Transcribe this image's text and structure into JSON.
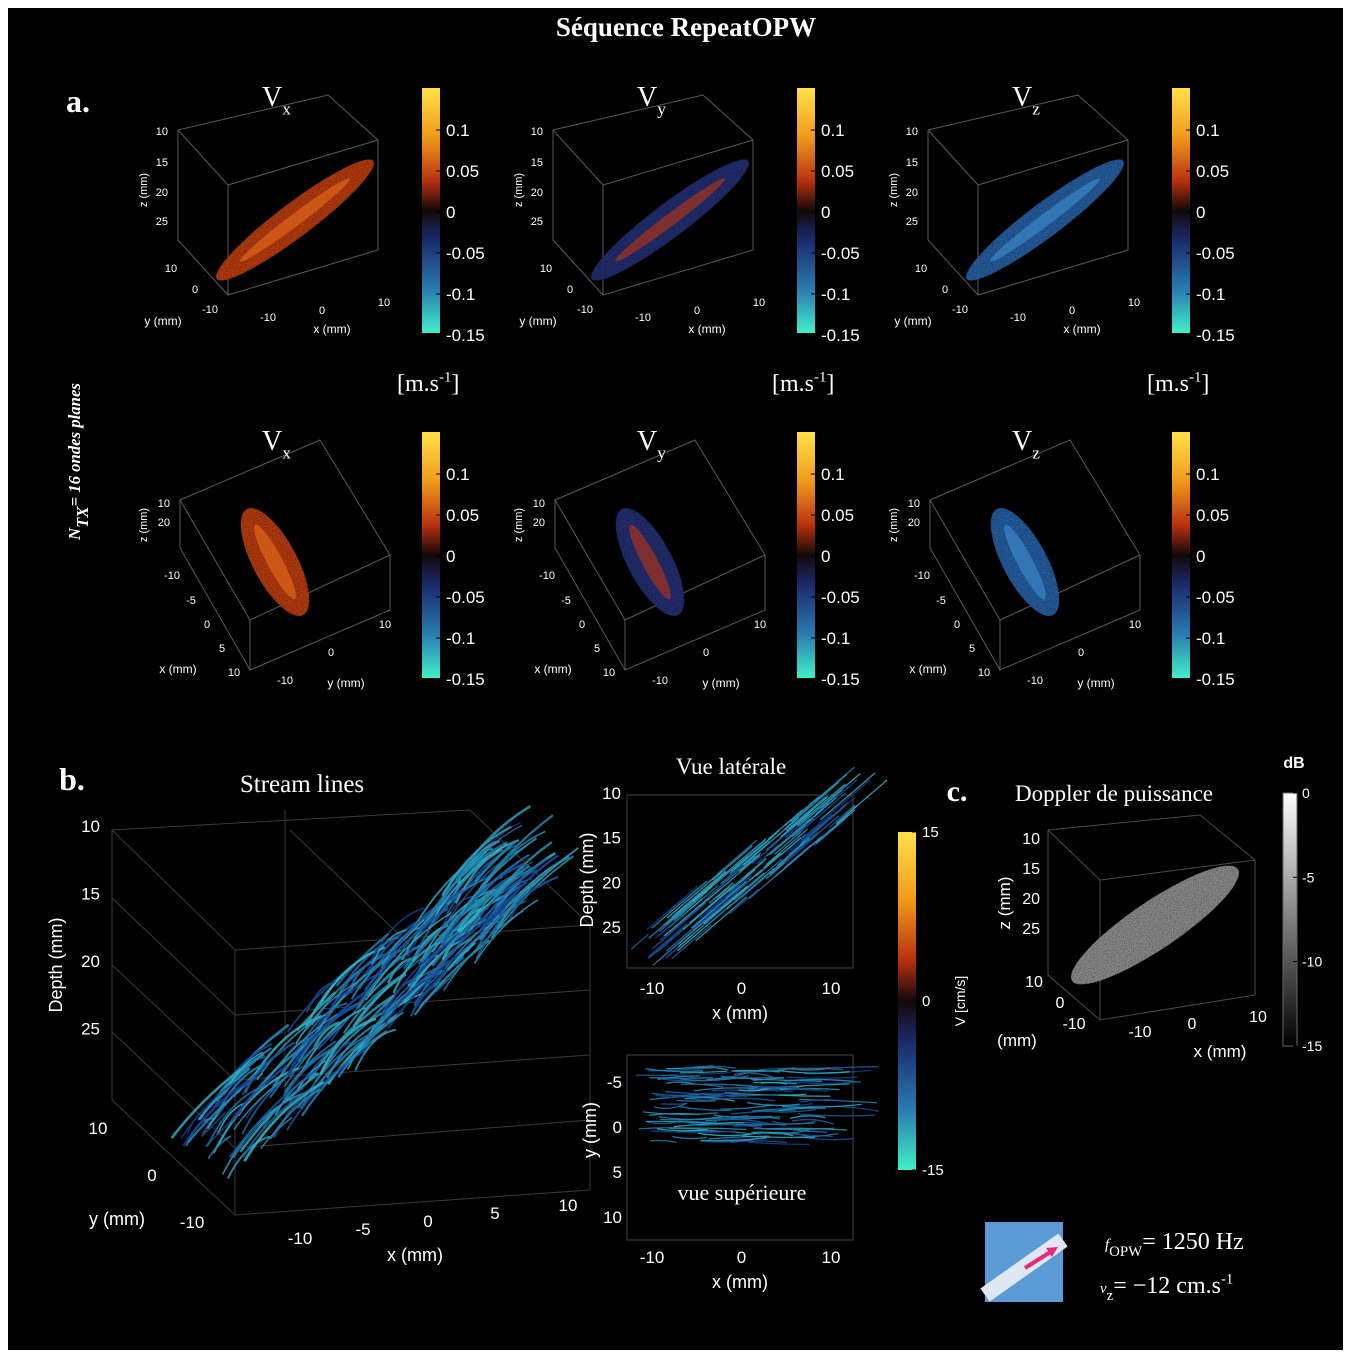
{
  "title": "Séquence RepeatOPW",
  "side_label": {
    "main": "N",
    "sub": "TX",
    "rest": "= 16 ondes planes"
  },
  "panel_a": {
    "label": "a.",
    "unit": {
      "main": "[m.s",
      "sup": "-1",
      "end": "]"
    },
    "colorbar_ticks": [
      0.1,
      0.05,
      0,
      -0.05,
      -0.1,
      -0.15
    ],
    "rows": [
      {
        "plots": [
          {
            "main": "V",
            "sub": "x"
          },
          {
            "main": "V",
            "sub": "y"
          },
          {
            "main": "V",
            "sub": "z"
          }
        ],
        "z_label": "z (mm)",
        "z_ticks": [
          10,
          15,
          20,
          25
        ],
        "y_label": "y (mm)",
        "y_ticks": [
          10,
          0,
          -10
        ],
        "x_label": "x (mm)",
        "x_ticks": [
          -10,
          0,
          10
        ]
      },
      {
        "plots": [
          {
            "main": "V",
            "sub": "x"
          },
          {
            "main": "V",
            "sub": "y"
          },
          {
            "main": "V",
            "sub": "z"
          }
        ],
        "z_label": "z (mm)",
        "z_ticks": [
          10,
          20
        ],
        "x_label": "x (mm)",
        "x_ticks": [
          -10,
          -5,
          0,
          5,
          10
        ],
        "y_label": "y (mm)",
        "y_ticks": [
          10,
          0,
          -10
        ]
      }
    ]
  },
  "panel_b": {
    "label": "b.",
    "stream": {
      "title": "Stream lines",
      "depth_label": "Depth (mm)",
      "depth_ticks": [
        10,
        15,
        20,
        25
      ],
      "y_label": "y (mm)",
      "y_ticks": [
        10,
        0,
        -10
      ],
      "x_label": "x (mm)",
      "x_ticks": [
        -10,
        -5,
        0,
        5,
        10
      ]
    },
    "lateral": {
      "title": "Vue latérale",
      "depth_label": "Depth (mm)",
      "depth_ticks": [
        10,
        15,
        20,
        25
      ],
      "x_label": "x (mm)",
      "x_ticks": [
        -10,
        0,
        10
      ]
    },
    "top": {
      "title": "vue supérieure",
      "y_label": "y (mm)",
      "y_ticks": [
        -5,
        0,
        5,
        10
      ],
      "x_label": "x (mm)",
      "x_ticks": [
        -10,
        0,
        10
      ]
    },
    "colorbar": {
      "label": "V [cm/s]",
      "ticks": [
        15,
        0,
        -15
      ]
    }
  },
  "panel_c": {
    "label": "c.",
    "title": "Doppler de puissance",
    "z_label": "z (mm)",
    "z_ticks": [
      10,
      15,
      20,
      25
    ],
    "y_label": "(mm)",
    "y_ticks": [
      10,
      0,
      -10
    ],
    "x_label": "x (mm)",
    "x_ticks": [
      -10,
      0,
      10
    ],
    "colorbar": {
      "label": "dB",
      "ticks": [
        0,
        -5,
        -10,
        -15
      ]
    }
  },
  "legend": {
    "f": {
      "main": "f",
      "sub": "OPW",
      "rest": "= 1250 Hz"
    },
    "v": {
      "main": "v",
      "sub": "z",
      "rest": "= −12 cm.s",
      "sup": "-1"
    }
  }
}
